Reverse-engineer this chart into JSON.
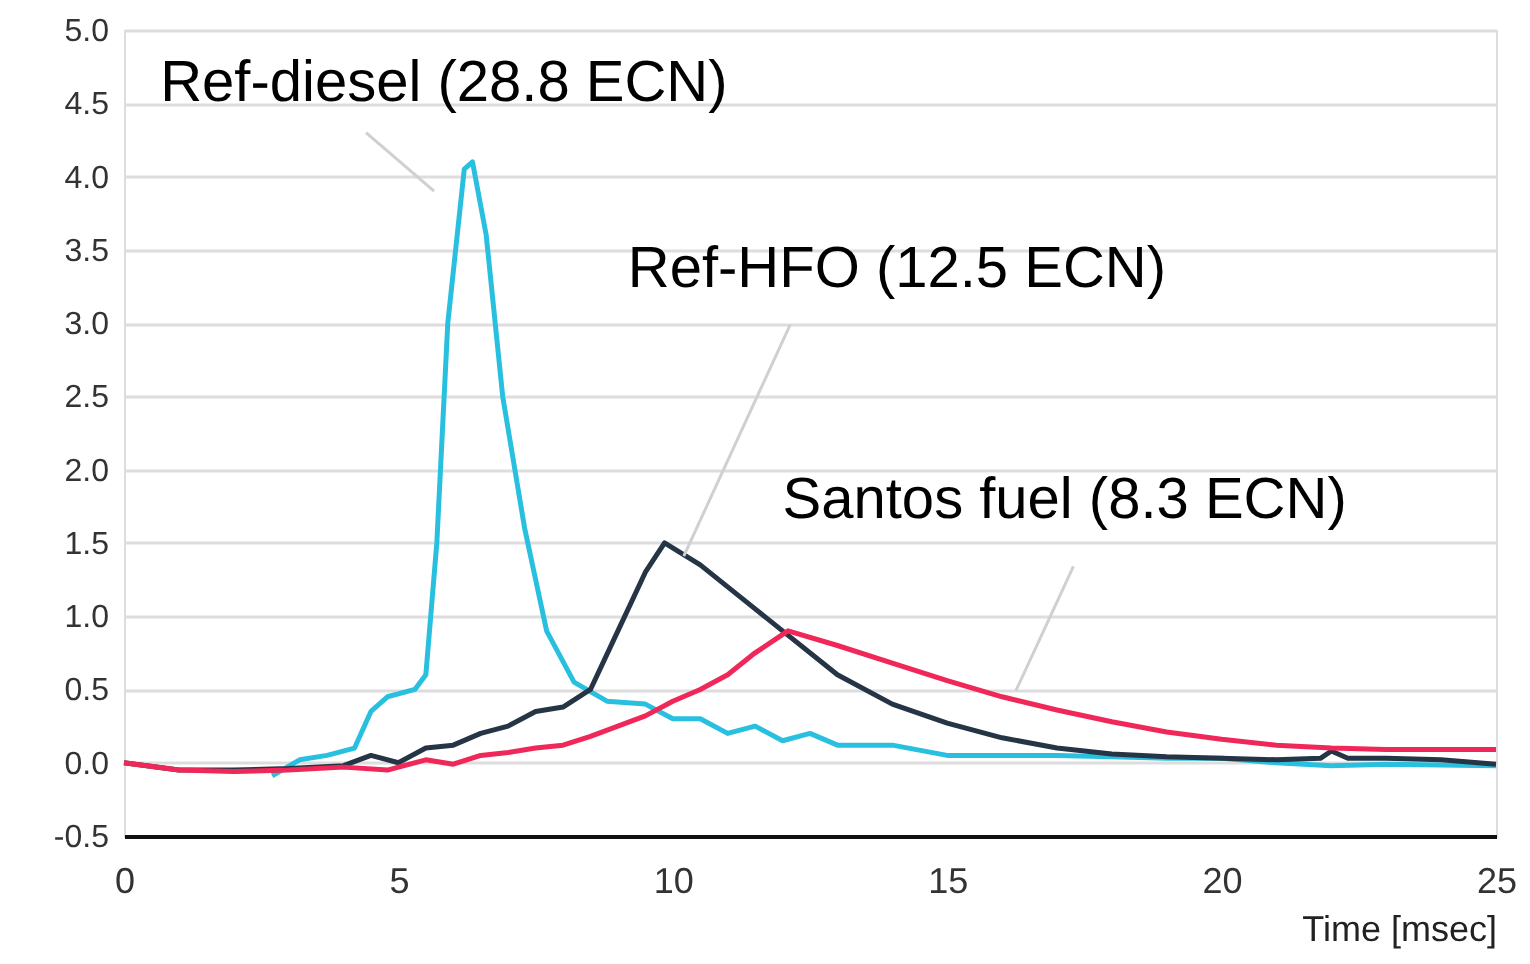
{
  "chart_data": {
    "type": "line",
    "xlabel": "Time [msec]",
    "xlim": [
      0,
      25
    ],
    "xticks": [
      0,
      5,
      10,
      15,
      20,
      25
    ],
    "ylim": [
      -0.5,
      5.0
    ],
    "yticks": [
      {
        "value": -0.5,
        "label": "-0.5"
      },
      {
        "value": 0,
        "label": "0.0"
      },
      {
        "value": 0.5,
        "label": "0.5"
      },
      {
        "value": 1,
        "label": "1.0"
      },
      {
        "value": 1.5,
        "label": "1.5"
      },
      {
        "value": 2,
        "label": "2.0"
      },
      {
        "value": 2.5,
        "label": "2.5"
      },
      {
        "value": 3,
        "label": "3.0"
      },
      {
        "value": 3.5,
        "label": "3.5"
      },
      {
        "value": 4,
        "label": "4.0"
      },
      {
        "value": 4.5,
        "label": "4.5"
      },
      {
        "value": 5,
        "label": "5.0"
      }
    ],
    "grid": "y",
    "legend": false,
    "marker": "none",
    "line_style": "solid",
    "series": [
      {
        "name": "Ref-diesel (28.8 ECN)",
        "color": "#29c0e0",
        "x": [
          2.7,
          3.2,
          3.7,
          4.2,
          4.5,
          4.8,
          5.3,
          5.5,
          5.7,
          5.9,
          6.2,
          6.35,
          6.6,
          6.9,
          7.3,
          7.7,
          8.2,
          8.8,
          9.5,
          10,
          10.5,
          11,
          11.5,
          12,
          12.5,
          13,
          14,
          15,
          16,
          17,
          18,
          19,
          20,
          21,
          22,
          23,
          25
        ],
        "values": [
          -0.09,
          0.02,
          0.05,
          0.1,
          0.35,
          0.45,
          0.5,
          0.6,
          1.5,
          3.0,
          4.05,
          4.1,
          3.6,
          2.5,
          1.6,
          0.9,
          0.55,
          0.42,
          0.4,
          0.3,
          0.3,
          0.2,
          0.25,
          0.15,
          0.2,
          0.12,
          0.12,
          0.05,
          0.05,
          0.05,
          0.04,
          0.03,
          0.03,
          0.0,
          -0.02,
          -0.01,
          -0.02
        ]
      },
      {
        "name": "Ref-HFO (12.5 ECN)",
        "color": "#253545",
        "x": [
          0,
          1,
          2,
          3,
          4,
          4.5,
          5,
          5.5,
          6,
          6.5,
          7,
          7.5,
          8,
          8.5,
          9,
          9.5,
          9.85,
          10.5,
          11.5,
          12,
          13,
          14,
          15,
          16,
          17,
          18,
          19,
          20,
          21,
          21.8,
          22,
          22.3,
          23,
          24,
          25
        ],
        "values": [
          0,
          -0.05,
          -0.05,
          -0.04,
          -0.02,
          0.05,
          0.0,
          0.1,
          0.12,
          0.2,
          0.25,
          0.35,
          0.38,
          0.5,
          0.9,
          1.3,
          1.5,
          1.35,
          1.05,
          0.9,
          0.6,
          0.4,
          0.27,
          0.17,
          0.1,
          0.06,
          0.04,
          0.03,
          0.02,
          0.03,
          0.08,
          0.03,
          0.03,
          0.02,
          -0.01
        ]
      },
      {
        "name": "Santos fuel (8.3 ECN)",
        "color": "#f0285a",
        "x": [
          0,
          1,
          2,
          3,
          4,
          4.8,
          5.5,
          6,
          6.5,
          7,
          7.5,
          8,
          8.5,
          9,
          9.5,
          10,
          10.5,
          11,
          11.5,
          12.1,
          13,
          14,
          15,
          16,
          17,
          18,
          19,
          20,
          21,
          22,
          23,
          25
        ],
        "values": [
          0,
          -0.05,
          -0.06,
          -0.05,
          -0.03,
          -0.05,
          0.02,
          -0.01,
          0.05,
          0.07,
          0.1,
          0.12,
          0.18,
          0.25,
          0.32,
          0.42,
          0.5,
          0.6,
          0.75,
          0.9,
          0.8,
          0.68,
          0.56,
          0.45,
          0.36,
          0.28,
          0.21,
          0.16,
          0.12,
          0.1,
          0.09,
          0.09
        ]
      }
    ]
  }
}
